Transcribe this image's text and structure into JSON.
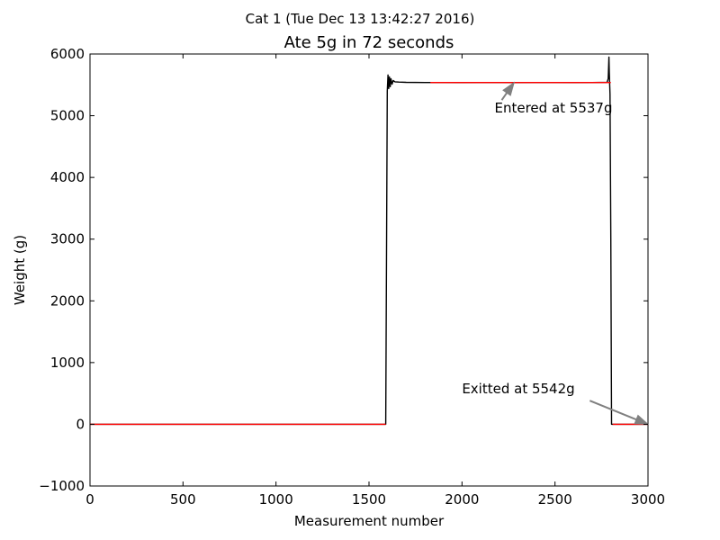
{
  "chart_data": {
    "type": "line",
    "suptitle": "Cat 1 (Tue Dec 13 13:42:27 2016)",
    "title": "Ate 5g in 72 seconds",
    "xlabel": "Measurement number",
    "ylabel": "Weight (g)",
    "xlim": [
      0,
      3000
    ],
    "ylim": [
      -1000,
      6000
    ],
    "xticks": [
      0,
      500,
      1000,
      1500,
      2000,
      2500,
      3000
    ],
    "yticks": [
      -1000,
      0,
      1000,
      2000,
      3000,
      4000,
      5000,
      6000
    ],
    "xtick_labels": [
      "0",
      "500",
      "1000",
      "1500",
      "2000",
      "2500",
      "3000"
    ],
    "ytick_labels": [
      "−1000",
      "0",
      "1000",
      "2000",
      "3000",
      "4000",
      "5000",
      "6000"
    ],
    "grid": false,
    "colors": {
      "raw": "#000000",
      "fit": "#ff0000",
      "arrow": "#808080"
    },
    "series": [
      {
        "color": "#000000",
        "x": [
          0,
          1590,
          1598,
          1602,
          1606,
          1610,
          1614,
          1618,
          1624,
          1630,
          1640,
          1660,
          1700,
          1800,
          1900,
          2000,
          2100,
          2200,
          2300,
          2400,
          2500,
          2600,
          2700,
          2780,
          2786,
          2790,
          2792,
          2796,
          2800,
          2804,
          2810,
          3000
        ],
        "y": [
          0,
          0,
          5400,
          5660,
          5440,
          5630,
          5470,
          5600,
          5510,
          5570,
          5550,
          5545,
          5540,
          5538,
          5537,
          5536,
          5538,
          5537,
          5536,
          5537,
          5538,
          5536,
          5537,
          5540,
          5600,
          5950,
          5700,
          5350,
          3000,
          0,
          0,
          0
        ]
      },
      {
        "color": "#ff0000",
        "segments": [
          {
            "x": [
              0,
              1590
            ],
            "y": [
              0,
              0
            ]
          },
          {
            "x": [
              1830,
              2800
            ],
            "y": [
              5537,
              5537
            ]
          },
          {
            "x": [
              2810,
              3000
            ],
            "y": [
              0,
              0
            ]
          }
        ]
      }
    ],
    "annotations": [
      {
        "text": "Entered at 5537g",
        "point": [
          2280,
          5537
        ],
        "text_pos": [
          2175,
          5050
        ]
      },
      {
        "text": "Exitted at 5542g",
        "point": [
          3000,
          0
        ],
        "text_pos": [
          2000,
          500
        ]
      }
    ]
  }
}
